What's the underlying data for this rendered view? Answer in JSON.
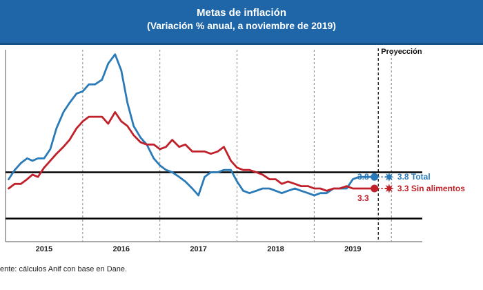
{
  "header": {
    "title": "Metas de inflación",
    "subtitle": "(Variación % anual, a noviembre de 2019)"
  },
  "source": "ente: cálculos Anif con base en Dane.",
  "colors": {
    "header_bg": "#1f66a8",
    "total": "#2a7ab8",
    "sin_alimentos": "#c0202a",
    "target_band": "#000000",
    "grid": "#888888"
  },
  "chart_data": {
    "type": "line",
    "title": "Metas de inflación",
    "subtitle": "(Variación % anual, a noviembre de 2019)",
    "x_unit": "years (fractional)",
    "xlim": [
      2014.5,
      2019.9
    ],
    "ylim": [
      1.0,
      9.3
    ],
    "year_ticks": [
      "2015",
      "2016",
      "2017",
      "2018",
      "2019"
    ],
    "year_dividers": [
      2015.5,
      2016.5,
      2017.5,
      2018.5,
      2019.5
    ],
    "projection_start": 2019.33,
    "projection_label": "Proyección",
    "target_range": {
      "low": 2.0,
      "high": 4.0
    },
    "series": [
      {
        "name": "Total",
        "x": [
          2014.54,
          2014.62,
          2014.7,
          2014.78,
          2014.85,
          2014.92,
          2015.0,
          2015.08,
          2015.16,
          2015.25,
          2015.33,
          2015.42,
          2015.5,
          2015.58,
          2015.66,
          2015.75,
          2015.83,
          2015.92,
          2016.0,
          2016.08,
          2016.16,
          2016.25,
          2016.33,
          2016.42,
          2016.5,
          2016.58,
          2016.66,
          2016.75,
          2016.83,
          2016.92,
          2017.0,
          2017.08,
          2017.16,
          2017.25,
          2017.33,
          2017.42,
          2017.5,
          2017.58,
          2017.66,
          2017.75,
          2017.83,
          2017.92,
          2018.0,
          2018.08,
          2018.16,
          2018.25,
          2018.33,
          2018.42,
          2018.5,
          2018.58,
          2018.66,
          2018.75,
          2018.83,
          2018.92,
          2019.0,
          2019.08,
          2019.16,
          2019.25
        ],
        "values": [
          3.7,
          4.1,
          4.4,
          4.6,
          4.5,
          4.6,
          4.6,
          5.0,
          5.9,
          6.6,
          7.0,
          7.4,
          7.5,
          7.8,
          7.8,
          8.0,
          8.7,
          9.1,
          8.4,
          7.0,
          6.0,
          5.5,
          5.2,
          4.6,
          4.3,
          4.1,
          4.0,
          3.8,
          3.6,
          3.3,
          3.0,
          3.8,
          4.0,
          4.0,
          4.1,
          4.1,
          3.6,
          3.2,
          3.1,
          3.2,
          3.3,
          3.3,
          3.2,
          3.1,
          3.2,
          3.3,
          3.2,
          3.1,
          3.0,
          3.1,
          3.1,
          3.3,
          3.3,
          3.3,
          3.7,
          3.8,
          3.8,
          3.8
        ]
      },
      {
        "name": "Sin alimentos",
        "x": [
          2014.54,
          2014.62,
          2014.7,
          2014.78,
          2014.85,
          2014.92,
          2015.0,
          2015.08,
          2015.16,
          2015.25,
          2015.33,
          2015.42,
          2015.5,
          2015.58,
          2015.66,
          2015.75,
          2015.83,
          2015.92,
          2016.0,
          2016.08,
          2016.16,
          2016.25,
          2016.33,
          2016.42,
          2016.5,
          2016.58,
          2016.66,
          2016.75,
          2016.83,
          2016.92,
          2017.0,
          2017.08,
          2017.16,
          2017.25,
          2017.33,
          2017.42,
          2017.5,
          2017.58,
          2017.66,
          2017.75,
          2017.83,
          2017.92,
          2018.0,
          2018.08,
          2018.16,
          2018.25,
          2018.33,
          2018.42,
          2018.5,
          2018.58,
          2018.66,
          2018.75,
          2018.83,
          2018.92,
          2019.0,
          2019.08,
          2019.16,
          2019.25
        ],
        "values": [
          3.3,
          3.5,
          3.5,
          3.7,
          3.9,
          3.8,
          4.2,
          4.5,
          4.8,
          5.1,
          5.4,
          5.9,
          6.2,
          6.4,
          6.4,
          6.4,
          6.1,
          6.6,
          6.2,
          6.0,
          5.6,
          5.3,
          5.2,
          5.2,
          5.0,
          5.1,
          5.4,
          5.1,
          5.2,
          4.9,
          4.9,
          4.9,
          4.8,
          4.9,
          5.1,
          4.5,
          4.2,
          4.1,
          4.1,
          4.0,
          3.9,
          3.7,
          3.7,
          3.5,
          3.6,
          3.5,
          3.4,
          3.4,
          3.3,
          3.3,
          3.2,
          3.3,
          3.3,
          3.4,
          3.3,
          3.3,
          3.3,
          3.3
        ]
      }
    ],
    "labels": [
      {
        "series": "Total",
        "left_value": "3.8",
        "right_text": "3.8 Total",
        "value": 3.8
      },
      {
        "series": "Sin alimentos",
        "left_value": "3.3",
        "right_text": "3.3 Sin alimentos",
        "value": 3.3
      }
    ]
  }
}
